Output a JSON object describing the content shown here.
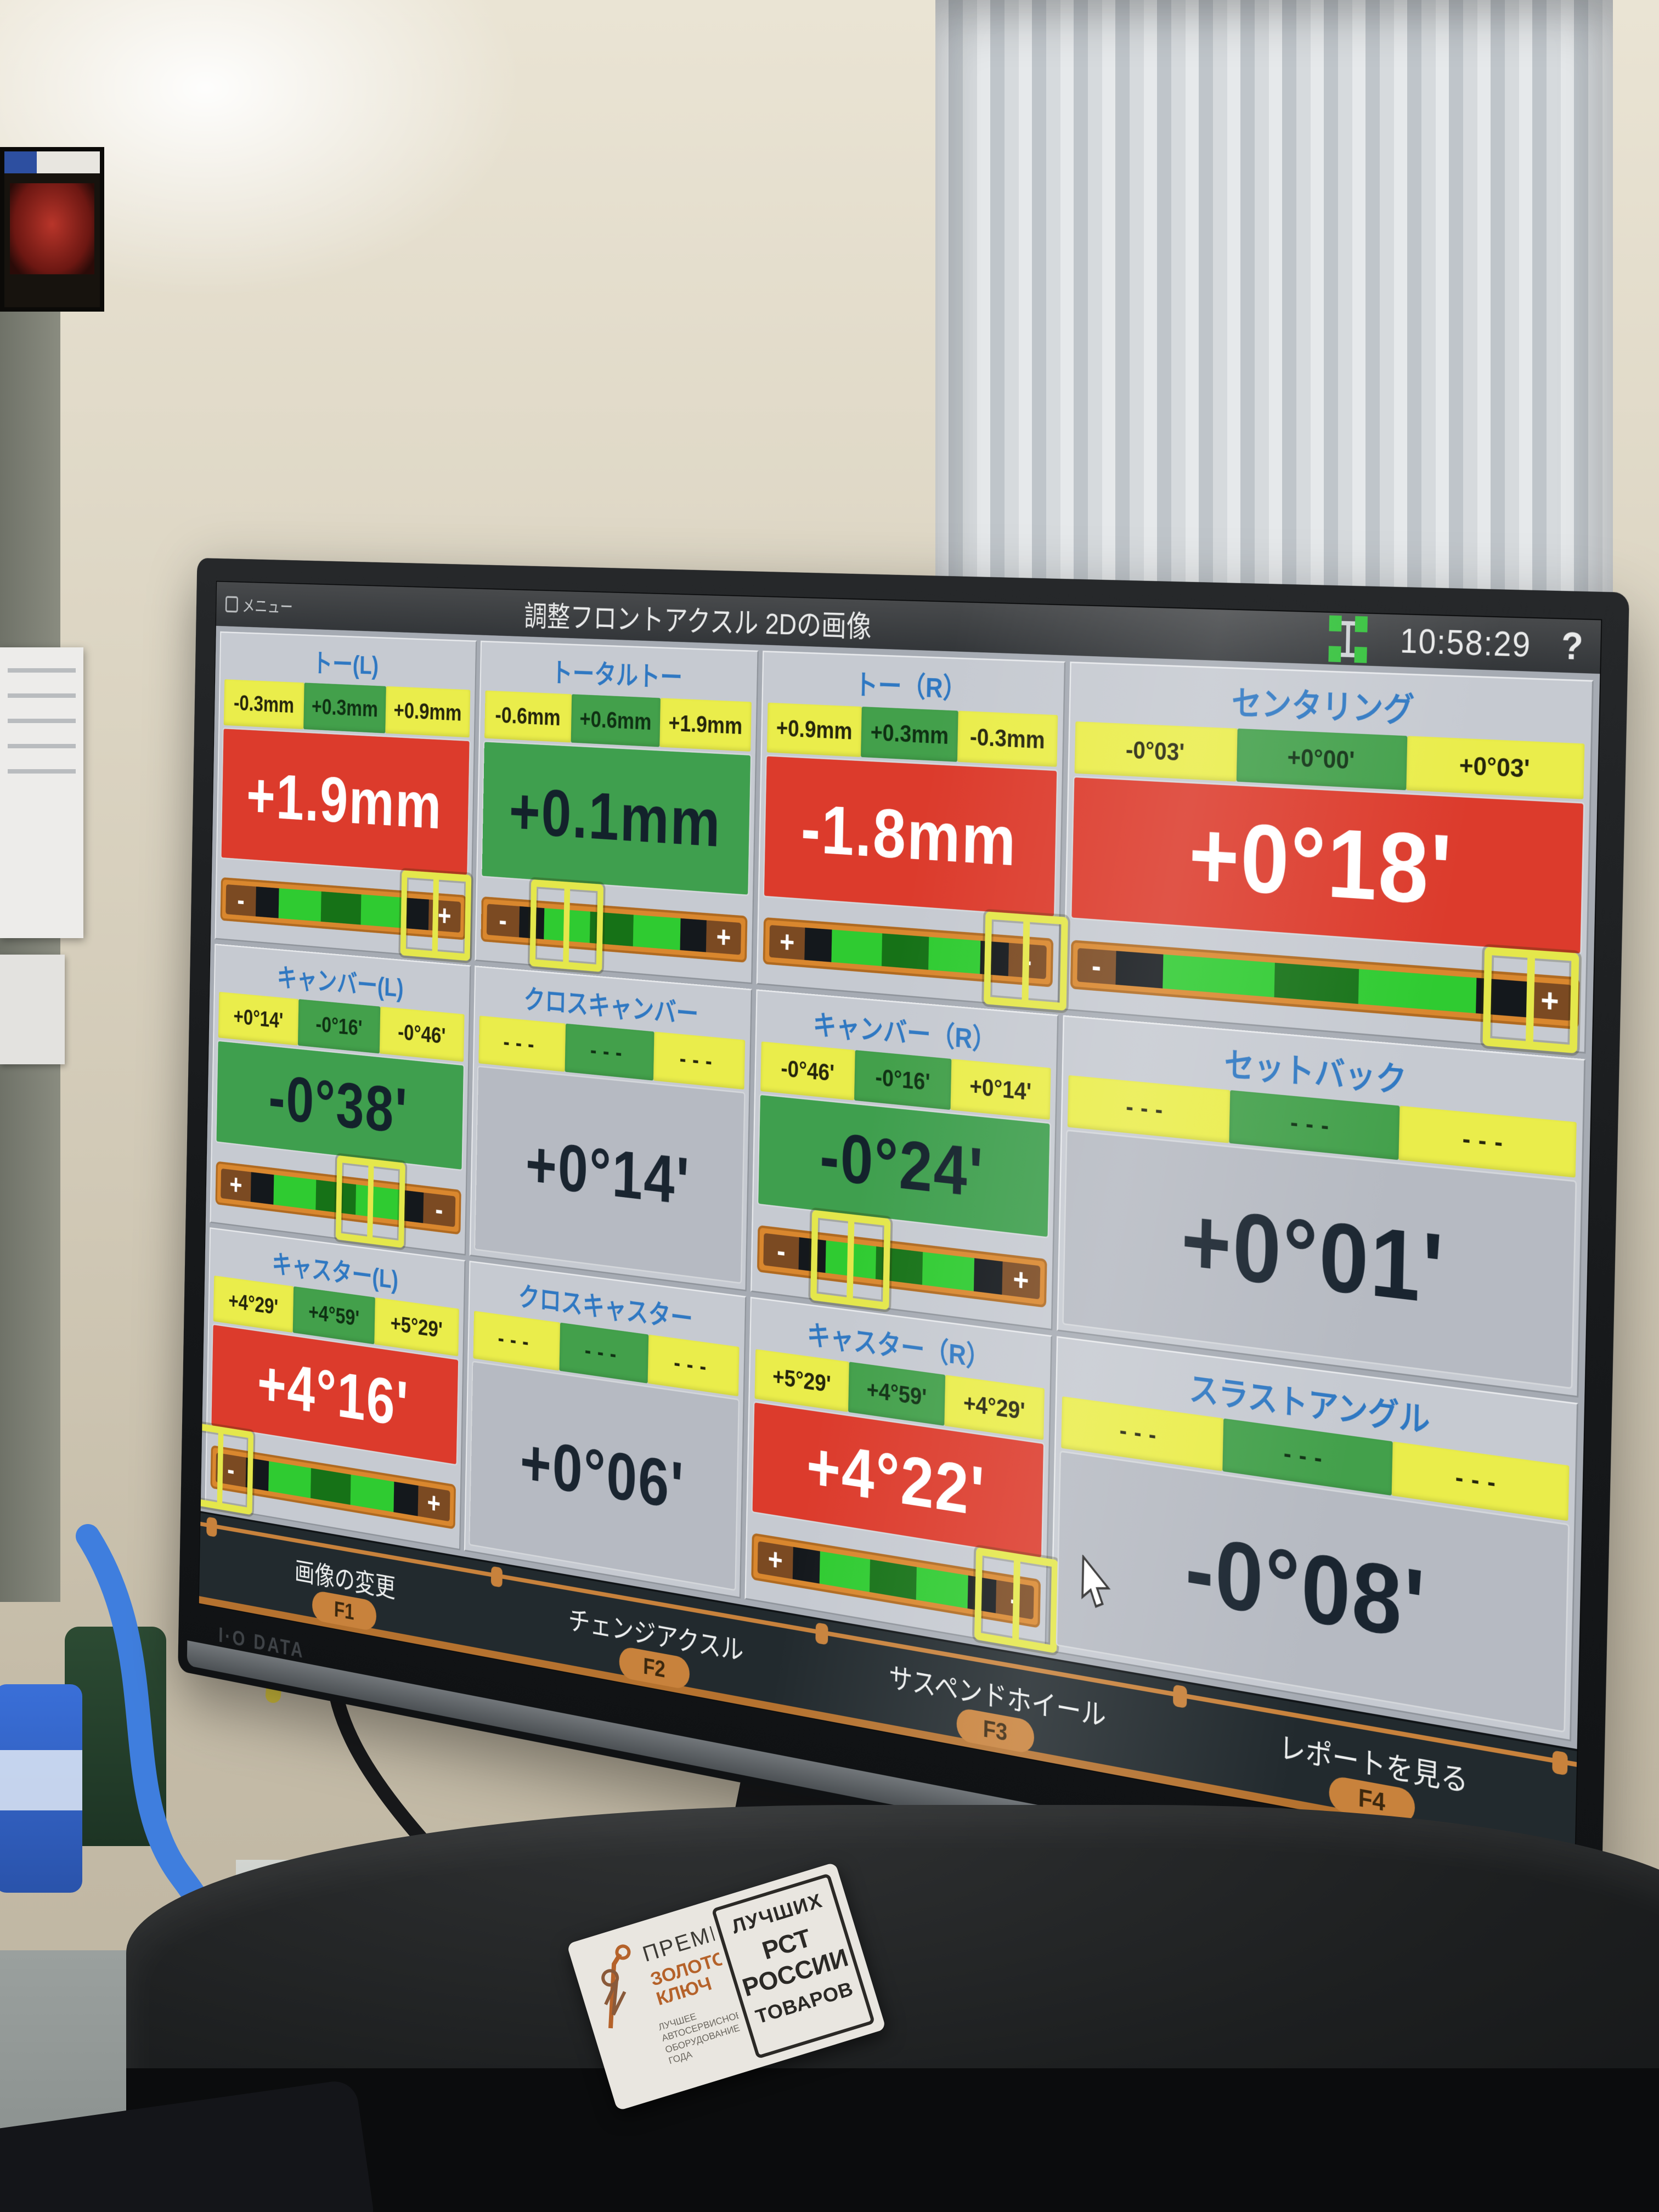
{
  "scene": {
    "monitor_brand": "I·O DATA",
    "award_sticker": {
      "title": "ПРЕМИЯ",
      "subtitle": "ЗОЛОТОЙ КЛЮЧ",
      "caption": "ЛУЧШЕЕ АВТОСЕРВИСНОЕ ОБОРУДОВАНИЕ ГОДА",
      "badge_top": "ЛУЧШИХ",
      "badge_center": "РСТ РОССИИ",
      "badge_bottom": "ТОВАРОВ"
    }
  },
  "screen": {
    "topbar": {
      "menu_label": "メニュー",
      "title": "調整フロントアクスル 2Dの画像",
      "clock": "10:58:29",
      "help_label": "?"
    },
    "colors": {
      "status_red": "#dc3b2c",
      "status_green": "#3f9f4e",
      "neutral_value_bg": "#b6bac2",
      "spec_yellow": "#eaed4b",
      "spec_green": "#43a04b",
      "title_blue": "#2f78c2",
      "accent_orange": "#c8823c",
      "slider_bright_green": "#2fcb31",
      "slider_dark_green": "#167217",
      "indicator_yellow": "#e4e74b"
    },
    "panels": [
      {
        "id": "toe-left",
        "title": "トー(L)",
        "specs": [
          "-0.3mm",
          "+0.3mm",
          "+0.9mm"
        ],
        "value": "+1.9mm",
        "status": "red",
        "slider": {
          "left_sign": "-",
          "right_sign": "+",
          "position_pct": 88
        }
      },
      {
        "id": "total-toe",
        "title": "トータルトー",
        "specs": [
          "-0.6mm",
          "+0.6mm",
          "+1.9mm"
        ],
        "value": "+0.1mm",
        "status": "green",
        "slider": {
          "left_sign": "-",
          "right_sign": "+",
          "position_pct": 33
        }
      },
      {
        "id": "toe-right",
        "title": "トー（R）",
        "specs": [
          "+0.9mm",
          "+0.3mm",
          "-0.3mm"
        ],
        "value": "-1.8mm",
        "status": "red",
        "slider": {
          "left_sign": "+",
          "right_sign": "-",
          "position_pct": 91
        }
      },
      {
        "id": "centering",
        "title": "センタリング",
        "specs": [
          "-0°03'",
          "+0°00'",
          "+0°03'"
        ],
        "value": "+0°18'",
        "status": "red",
        "slider": {
          "left_sign": "-",
          "right_sign": "+",
          "position_pct": 91
        }
      },
      {
        "id": "camber-left",
        "title": "キャンバー(L)",
        "specs": [
          "+0°14'",
          "-0°16'",
          "-0°46'"
        ],
        "value": "-0°38'",
        "status": "green",
        "slider": {
          "left_sign": "+",
          "right_sign": "-",
          "position_pct": 64
        }
      },
      {
        "id": "cross-camber",
        "title": "クロスキャンバー",
        "specs": [
          "---",
          "---",
          "---"
        ],
        "value": "+0°14'",
        "status": "none",
        "slider": null
      },
      {
        "id": "camber-right",
        "title": "キャンバー（R）",
        "specs": [
          "-0°46'",
          "-0°16'",
          "+0°14'"
        ],
        "value": "-0°24'",
        "status": "green",
        "slider": {
          "left_sign": "-",
          "right_sign": "+",
          "position_pct": 33
        }
      },
      {
        "id": "setback",
        "title": "セットバック",
        "specs": [
          "---",
          "---",
          "---"
        ],
        "value": "+0°01'",
        "status": "none",
        "slider": null
      },
      {
        "id": "caster-left",
        "title": "キャスター(L)",
        "specs": [
          "+4°29'",
          "+4°59'",
          "+5°29'"
        ],
        "value": "+4°16'",
        "status": "red",
        "slider": {
          "left_sign": "-",
          "right_sign": "+",
          "position_pct": 4
        }
      },
      {
        "id": "cross-caster",
        "title": "クロスキャスター",
        "specs": [
          "---",
          "---",
          "---"
        ],
        "value": "+0°06'",
        "status": "none",
        "slider": null
      },
      {
        "id": "caster-right",
        "title": "キャスター（R）",
        "specs": [
          "+5°29'",
          "+4°59'",
          "+4°29'"
        ],
        "value": "+4°22'",
        "status": "red",
        "slider": {
          "left_sign": "+",
          "right_sign": "-",
          "position_pct": 92
        }
      },
      {
        "id": "thrust-angle",
        "title": "スラストアングル",
        "specs": [
          "---",
          "---",
          "---"
        ],
        "value": "-0°08'",
        "status": "none",
        "slider": null,
        "cursor": true
      }
    ],
    "function_bar": [
      {
        "label": "画像の変更",
        "fkey": "F1"
      },
      {
        "label": "チェンジアクスル",
        "fkey": "F2"
      },
      {
        "label": "サスペンドホイール",
        "fkey": "F3"
      },
      {
        "label": "レポートを見る",
        "fkey": "F4"
      }
    ]
  }
}
